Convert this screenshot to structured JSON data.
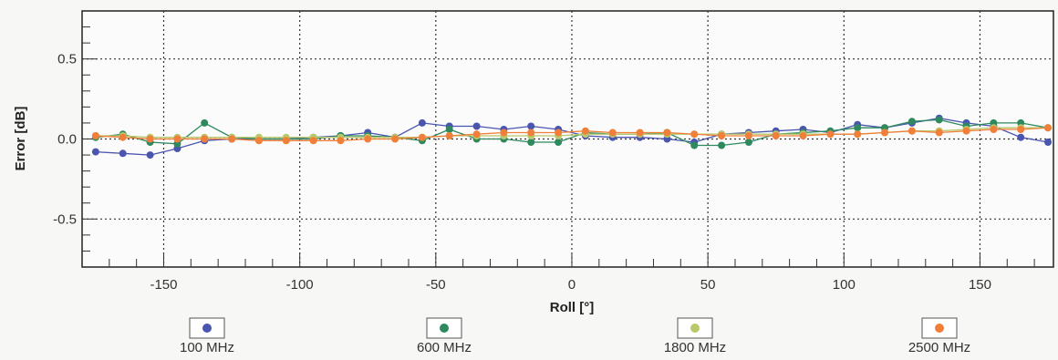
{
  "chart_data": {
    "type": "line",
    "xlabel": "Roll [°]",
    "ylabel": "Error [dB]",
    "xlim": [
      -180,
      177
    ],
    "ylim": [
      -0.8,
      0.8
    ],
    "xticks": [
      -150,
      -100,
      -50,
      0,
      50,
      100,
      150
    ],
    "xtick_labels": [
      "-150",
      "-100",
      "-50",
      "0",
      "50",
      "100",
      "150"
    ],
    "yticks": [
      -0.5,
      0.0,
      0.5
    ],
    "ytick_labels": [
      "-0.5",
      "0.0",
      "0.5"
    ],
    "grid": true,
    "legend_position": "bottom",
    "x": [
      -175,
      -165,
      -155,
      -145,
      -135,
      -125,
      -115,
      -105,
      -95,
      -85,
      -75,
      -65,
      -55,
      -45,
      -35,
      -25,
      -15,
      -5,
      5,
      15,
      25,
      35,
      45,
      55,
      65,
      75,
      85,
      95,
      105,
      115,
      125,
      135,
      145,
      155,
      165,
      175
    ],
    "series": [
      {
        "name": "100 MHz",
        "color": "#4a55b0",
        "values": [
          -0.08,
          -0.09,
          -0.1,
          -0.06,
          -0.01,
          0.0,
          0.0,
          0.0,
          0.01,
          0.02,
          0.04,
          0.01,
          0.1,
          0.08,
          0.08,
          0.06,
          0.08,
          0.06,
          0.02,
          0.01,
          0.01,
          0.0,
          -0.02,
          0.03,
          0.04,
          0.05,
          0.06,
          0.04,
          0.09,
          0.07,
          0.1,
          0.13,
          0.1,
          0.08,
          0.01,
          -0.02
        ]
      },
      {
        "name": "600 MHz",
        "color": "#2e8a5e",
        "values": [
          0.01,
          0.03,
          -0.02,
          -0.03,
          0.1,
          0.01,
          0.0,
          0.0,
          0.0,
          0.02,
          0.02,
          0.01,
          -0.01,
          0.06,
          0.0,
          0.0,
          -0.02,
          -0.02,
          0.04,
          0.03,
          0.03,
          0.04,
          -0.04,
          -0.04,
          -0.02,
          0.03,
          0.04,
          0.05,
          0.07,
          0.07,
          0.11,
          0.12,
          0.08,
          0.1,
          0.1,
          0.07
        ]
      },
      {
        "name": "1800 MHz",
        "color": "#b8c86a",
        "values": [
          0.02,
          0.02,
          0.01,
          0.01,
          0.01,
          0.01,
          0.01,
          0.01,
          0.01,
          0.01,
          0.01,
          0.01,
          0.01,
          0.02,
          0.02,
          0.02,
          0.02,
          0.02,
          0.03,
          0.03,
          0.03,
          0.03,
          0.03,
          0.03,
          0.03,
          0.03,
          0.03,
          0.03,
          0.03,
          0.04,
          0.05,
          0.05,
          0.06,
          0.07,
          0.07,
          0.07
        ]
      },
      {
        "name": "2500 MHz",
        "color": "#f07f3a",
        "values": [
          0.02,
          0.01,
          0.0,
          0.0,
          0.0,
          0.0,
          -0.01,
          -0.01,
          -0.01,
          -0.01,
          0.0,
          0.0,
          0.01,
          0.02,
          0.03,
          0.04,
          0.04,
          0.04,
          0.05,
          0.04,
          0.04,
          0.04,
          0.03,
          0.02,
          0.02,
          0.02,
          0.02,
          0.03,
          0.03,
          0.04,
          0.05,
          0.04,
          0.05,
          0.06,
          0.06,
          0.07
        ]
      }
    ]
  }
}
